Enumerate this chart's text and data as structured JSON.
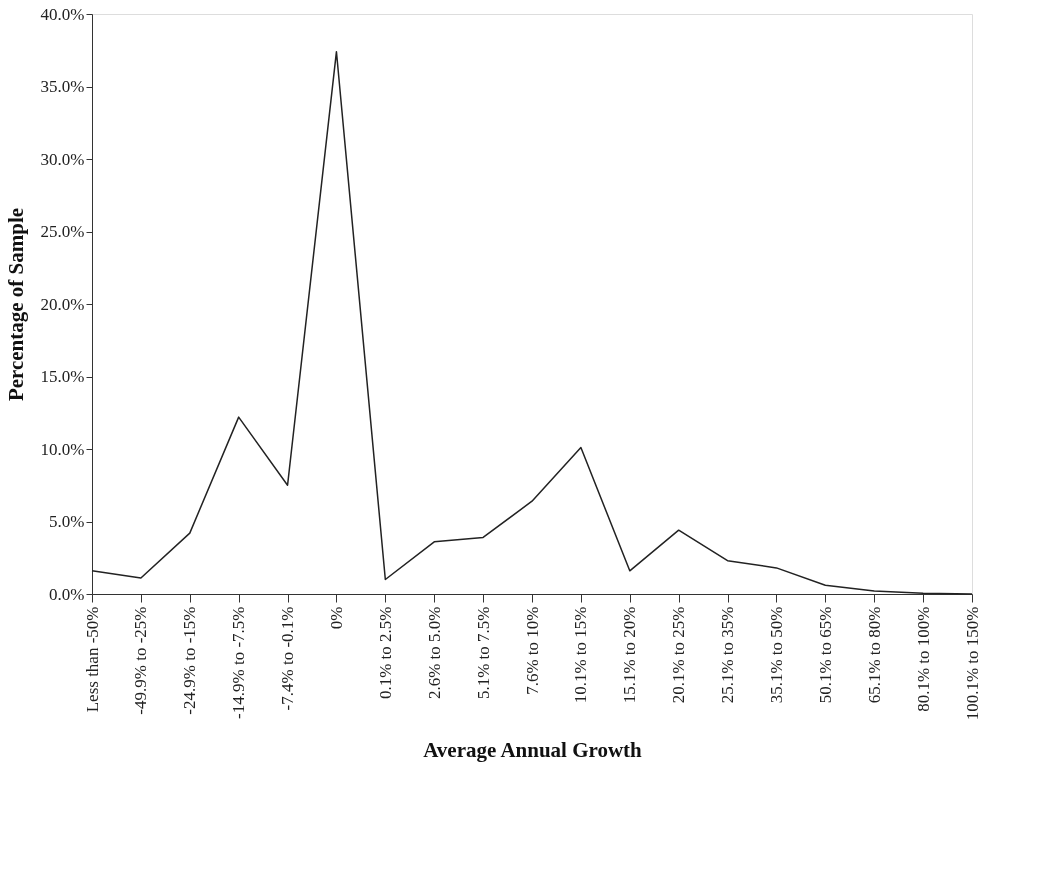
{
  "chart_data": {
    "type": "line",
    "xlabel": "Average Annual Growth",
    "ylabel": "Percentage of Sample",
    "categories": [
      "Less than -50%",
      "-49.9% to -25%",
      "-24.9% to -15%",
      "-14.9% to -7.5%",
      "-7.4% to -0.1%",
      "0%",
      "0.1% to 2.5%",
      "2.6% to 5.0%",
      "5.1% to 7.5%",
      "7.6% to 10%",
      "10.1% to 15%",
      "15.1% to 20%",
      "20.1% to 25%",
      "25.1% to 35%",
      "35.1% to 50%",
      "50.1% to 65%",
      "65.1% to 80%",
      "80.1% to 100%",
      "100.1% to 150%"
    ],
    "series": [
      {
        "color": "#222222",
        "values": [
          1.6,
          1.1,
          4.2,
          12.2,
          7.5,
          37.4,
          1.0,
          3.6,
          3.9,
          6.4,
          10.1,
          1.6,
          4.4,
          2.3,
          1.8,
          0.6,
          0.2,
          0.05,
          0.0
        ]
      }
    ],
    "ylim": [
      0,
      40
    ],
    "yticks": [
      {
        "value": 0,
        "label": "0.0%"
      },
      {
        "value": 5,
        "label": "5.0%"
      },
      {
        "value": 10,
        "label": "10.0%"
      },
      {
        "value": 15,
        "label": "15.0%"
      },
      {
        "value": 20,
        "label": "20.0%"
      },
      {
        "value": 25,
        "label": "25.0%"
      },
      {
        "value": 30,
        "label": "30.0%"
      },
      {
        "value": 35,
        "label": "35.0%"
      },
      {
        "value": 40,
        "label": "40.0%"
      }
    ],
    "grid": false,
    "marker": "none",
    "line_style": "solid"
  }
}
